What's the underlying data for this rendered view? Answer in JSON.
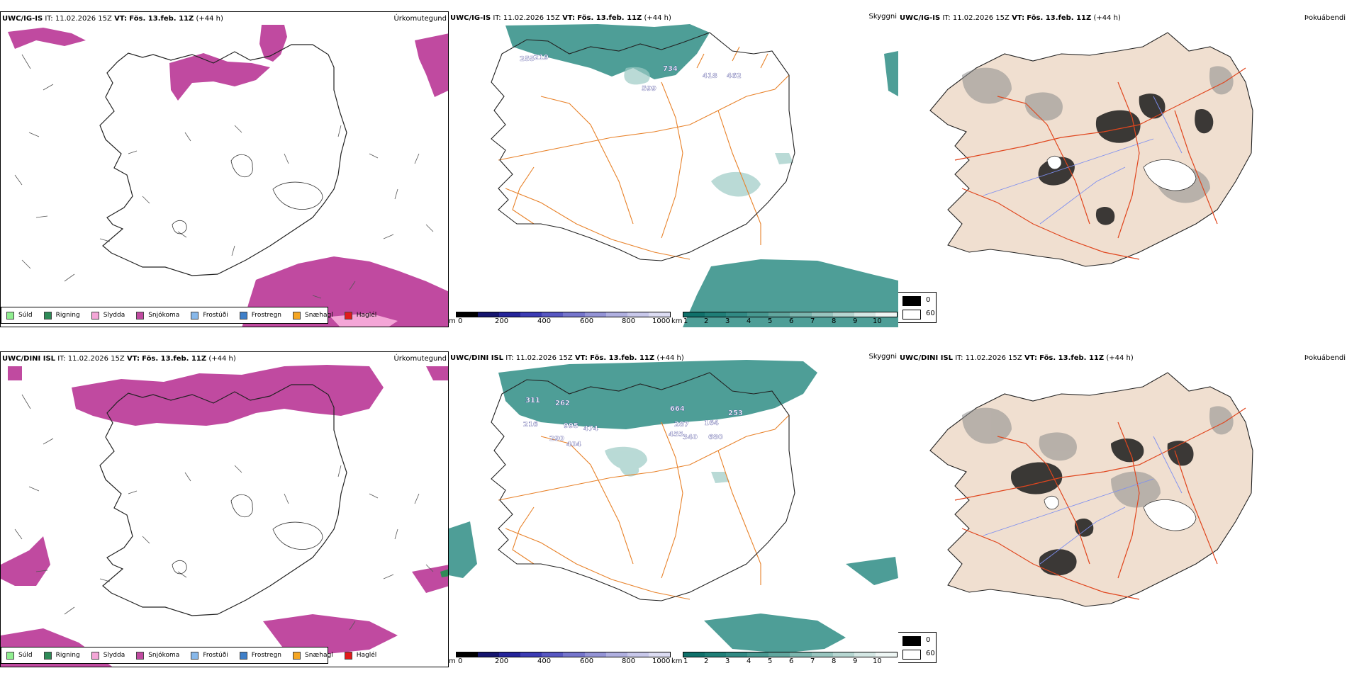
{
  "rows": [
    {
      "model": "UWC/IG-IS",
      "it_label": "IT:",
      "it_value": "11.02.2026 15Z",
      "vt_label": "VT:",
      "vt_value": "Fös. 13.feb. 11Z",
      "lead": "(+44 h)",
      "precip_numbers": [
        "255",
        "219",
        "734",
        "599",
        "418",
        "462"
      ]
    },
    {
      "model": "UWC/DINI ISL",
      "it_label": "IT:",
      "it_value": "11.02.2026 15Z",
      "vt_label": "VT:",
      "vt_value": "Fös. 13.feb. 11Z",
      "lead": "(+44 h)",
      "precip_numbers": [
        "311",
        "262",
        "216",
        "995",
        "474",
        "290",
        "404",
        "664",
        "287",
        "164",
        "253",
        "455",
        "340",
        "680"
      ]
    }
  ],
  "panel_titles": {
    "precip_type": "Úrkomutegund",
    "visibility": "Skyggni",
    "fog": "Þokuábendi"
  },
  "precip_legend": [
    {
      "label": "Súld",
      "color": "#90ee90"
    },
    {
      "label": "Rigning",
      "color": "#2e8b57"
    },
    {
      "label": "Slydda",
      "color": "#f4a6d7"
    },
    {
      "label": "Snjókoma",
      "color": "#c04aa0"
    },
    {
      "label": "Frostúði",
      "color": "#87b8ea"
    },
    {
      "label": "Frostregn",
      "color": "#3f7fc8"
    },
    {
      "label": "Snæhagl",
      "color": "#f5a623"
    },
    {
      "label": "Haglél",
      "color": "#e11b1b"
    }
  ],
  "elevation_scale": {
    "unit": "m",
    "ticks": [
      "0",
      "200",
      "400",
      "600",
      "800",
      "1000"
    ],
    "colors": [
      "#000000",
      "#15156e",
      "#25259a",
      "#3c3cb4",
      "#5858c2",
      "#7676cc",
      "#9494d6",
      "#b0b0e0",
      "#c8c8ea",
      "#dcdcf2"
    ]
  },
  "visibility_scale": {
    "unit": "km",
    "ticks": [
      "1",
      "2",
      "3",
      "4",
      "5",
      "6",
      "7",
      "8",
      "9",
      "10"
    ],
    "colors": [
      "#0f706a",
      "#1f7e77",
      "#318a84",
      "#479890",
      "#60a69e",
      "#7bb5ae",
      "#98c5bf",
      "#b6d6d1",
      "#d4e7e4",
      "#eef6f4"
    ]
  },
  "fog_scale": {
    "max": "0",
    "min": "60"
  },
  "map_colors": {
    "snow": "#c04aa0",
    "sleet": "#f4a6d7",
    "rain": "#2e8b57",
    "sea_teal": "#2f8d85",
    "land_fog": "#f0dfd0",
    "roads_orange": "#e8822a",
    "roads_red": "#e0461e",
    "rivers": "#7d8ef0",
    "outline": "#222222"
  }
}
